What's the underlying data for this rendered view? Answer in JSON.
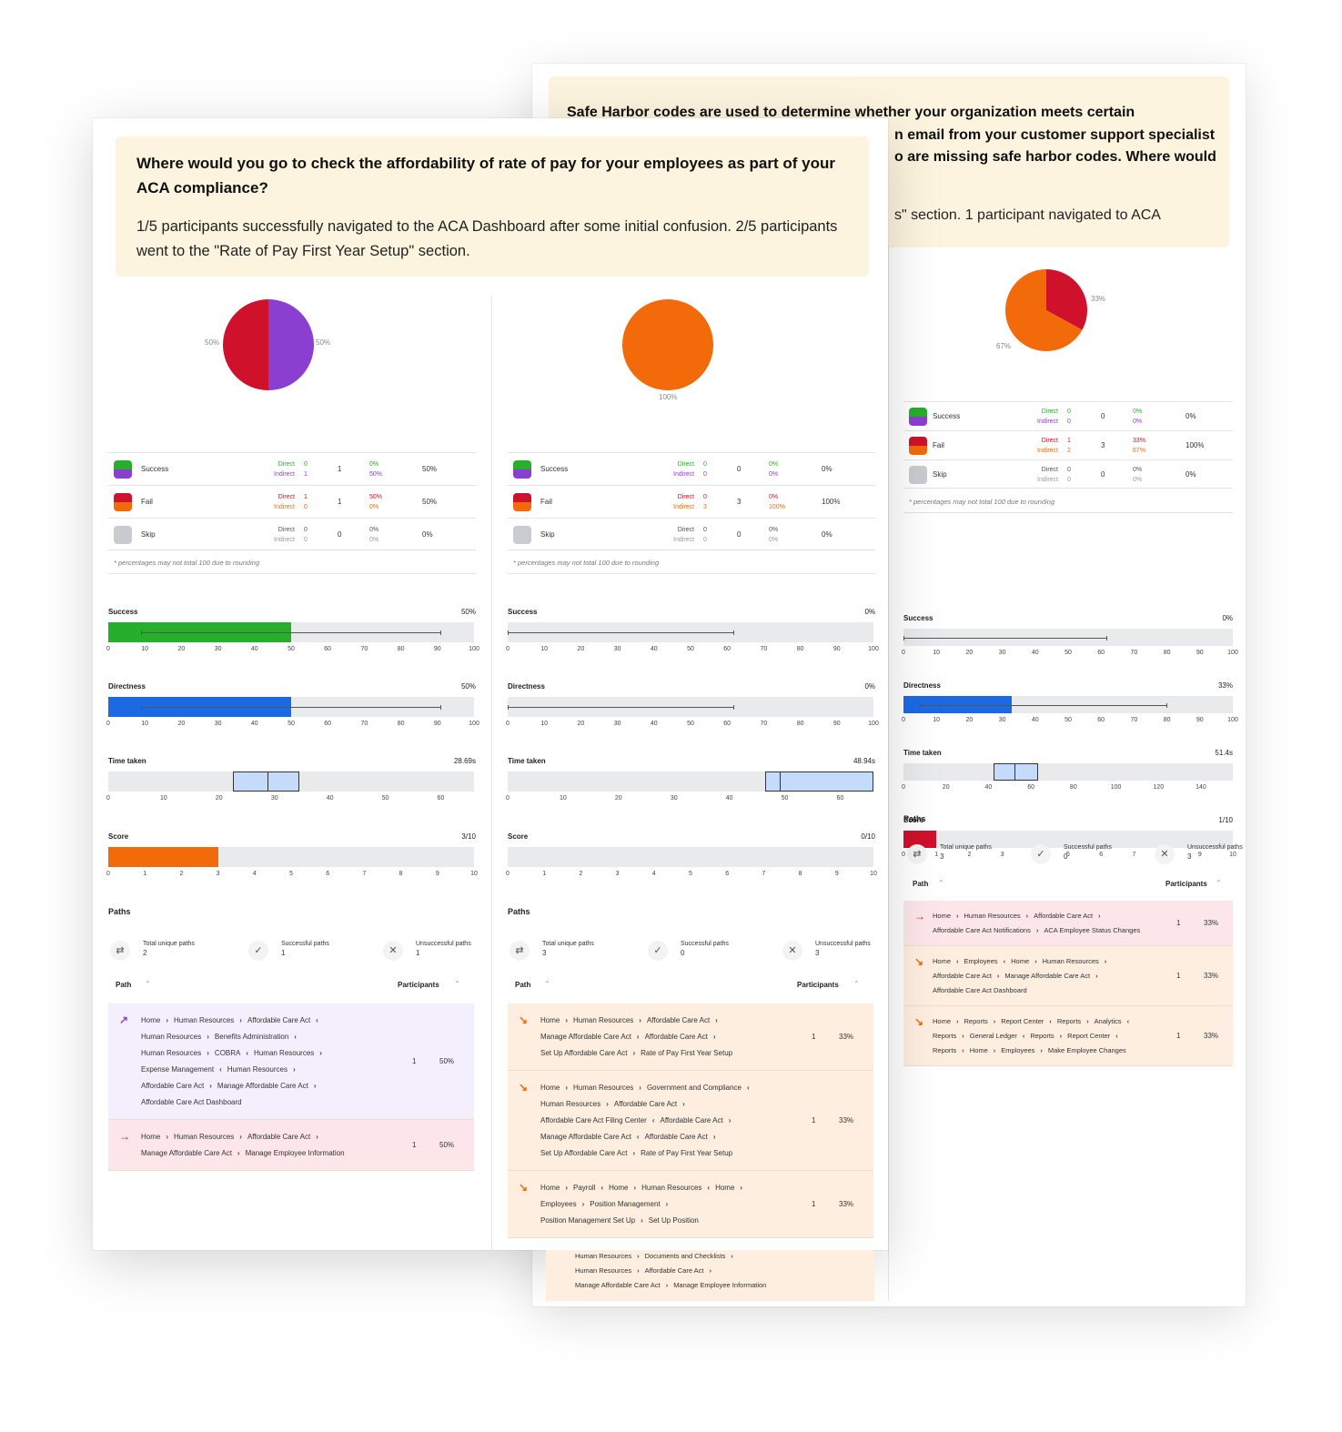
{
  "colors": {
    "success_direct": "#27ae2a",
    "success_indirect": "#8b3fd1",
    "fail_direct": "#d0112b",
    "fail_indirect": "#f26a0a",
    "skip": "#c8ccd1",
    "directness_blue": "#1c6ae3",
    "time_box": "#c4dcf9",
    "question_bg": "#fcf4de",
    "row_success": "#f3effd",
    "row_fail": "#fde6e9",
    "row_indirect_fail": "#fdeedf"
  },
  "legend_labels": {
    "success": "Success",
    "fail": "Fail",
    "skip": "Skip",
    "direct": "Direct",
    "indirect": "Indirect"
  },
  "rounding_note": "* percentages may not total 100 due to rounding",
  "metric_labels": {
    "success": "Success",
    "directness": "Directness",
    "time": "Time taken",
    "score": "Score",
    "paths": "Paths"
  },
  "paths_labels": {
    "total": "Total unique paths",
    "successful": "Successful paths",
    "unsuccessful": "Unsuccessful paths",
    "path": "Path",
    "participants": "Participants"
  },
  "tick_sets": {
    "pct": [
      "0",
      "10",
      "20",
      "30",
      "40",
      "50",
      "60",
      "70",
      "80",
      "90",
      "100"
    ],
    "score": [
      "0",
      "1",
      "2",
      "3",
      "4",
      "5",
      "6",
      "7",
      "8",
      "9",
      "10"
    ],
    "time_front1": [
      "0",
      "10",
      "20",
      "30",
      "40",
      "50",
      "60"
    ],
    "time_front2": [
      "0",
      "10",
      "20",
      "30",
      "40",
      "50",
      "60"
    ],
    "time_back": [
      "0",
      "20",
      "40",
      "60",
      "80",
      "100",
      "120",
      "140"
    ]
  },
  "back_question": {
    "title_lines": [
      "Safe Harbor codes are used to determine whether your organization meets certain",
      "n email from your customer support specialist",
      "o are missing safe harbor codes. Where would"
    ],
    "desc": "s\" section. 1 participant navigated to ACA"
  },
  "front_question": {
    "title": "Where would you go to check the affordability of rate of pay for your employees as part of your ACA compliance?",
    "desc": "1/5 participants successfully navigated to the ACA Dashboard after some initial confusion. 2/5 participants went to the \"Rate of Pay First Year Setup\" section."
  },
  "columns": [
    {
      "pie_labels": [
        "50%",
        "50%"
      ],
      "pie": [
        {
          "label": "Indirect success",
          "value": 50,
          "color": "#8b3fd1"
        },
        {
          "label": "Direct fail",
          "value": 50,
          "color": "#d0112b"
        }
      ],
      "legend": [
        {
          "dv": "0",
          "iv": "1",
          "dp": "0%",
          "ip": "50%",
          "tot": "1",
          "pct": "50%"
        },
        {
          "dv": "1",
          "iv": "0",
          "dp": "50%",
          "ip": "0%",
          "tot": "1",
          "pct": "50%"
        },
        {
          "dv": "0",
          "iv": "0",
          "dp": "0%",
          "ip": "0%",
          "tot": "0",
          "pct": "0%"
        }
      ],
      "success": {
        "value": "50%",
        "fill": 50,
        "whisker": [
          9,
          91
        ]
      },
      "directness": {
        "value": "50%",
        "fill": 50,
        "whisker": [
          9,
          91
        ]
      },
      "time": {
        "value": "28.69s",
        "box": [
          22.5,
          34.5
        ],
        "median": 28.7,
        "max": 66
      },
      "score": {
        "value": "3/10",
        "fill": 3
      },
      "paths": {
        "total": "2",
        "successful": "1",
        "unsuccessful": "1"
      },
      "rows": [
        {
          "crumbs": "Home › Human Resources › Affordable Care Act ‹ Human Resources › Benefits Administration ‹ Human Resources › COBRA ‹ Human Resources › Expense Management ‹ Human Resources › Affordable Care Act › Manage Affordable Care Act › Affordable Care Act Dashboard",
          "lines": [
            [
              "Home",
              "›",
              "Human Resources",
              "›",
              "Affordable Care Act",
              "‹"
            ],
            [
              "Human Resources",
              "›",
              "Benefits Administration",
              "‹"
            ],
            [
              "Human Resources",
              "›",
              "COBRA",
              "‹",
              "Human Resources",
              "›"
            ],
            [
              "Expense Management",
              "‹",
              "Human Resources",
              "›"
            ],
            [
              "Affordable Care Act",
              "›",
              "Manage Affordable Care Act",
              "›"
            ],
            [
              "Affordable Care Act Dashboard"
            ]
          ],
          "participants": "1",
          "pct": "50%",
          "kind": "success"
        },
        {
          "lines": [
            [
              "Home",
              "›",
              "Human Resources",
              "›",
              "Affordable Care Act",
              "›"
            ],
            [
              "Manage Affordable Care Act",
              "›",
              "Manage Employee Information"
            ]
          ],
          "participants": "1",
          "pct": "50%",
          "kind": "fail"
        }
      ]
    },
    {
      "pie_labels": [
        "100%"
      ],
      "pie": [
        {
          "label": "Indirect fail",
          "value": 100,
          "color": "#f26a0a"
        }
      ],
      "legend": [
        {
          "dv": "0",
          "iv": "0",
          "dp": "0%",
          "ip": "0%",
          "tot": "0",
          "pct": "0%"
        },
        {
          "dv": "0",
          "iv": "3",
          "dp": "0%",
          "ip": "100%",
          "tot": "3",
          "pct": "100%"
        },
        {
          "dv": "0",
          "iv": "0",
          "dp": "0%",
          "ip": "0%",
          "tot": "0",
          "pct": "0%"
        }
      ],
      "success": {
        "value": "0%",
        "fill": 0,
        "whisker": [
          0,
          62
        ]
      },
      "directness": {
        "value": "0%",
        "fill": 0,
        "whisker": [
          0,
          62
        ]
      },
      "time": {
        "value": "48.94s",
        "box": [
          46.5,
          66
        ],
        "median": 49,
        "max": 66
      },
      "score": {
        "value": "0/10",
        "fill": 0
      },
      "paths": {
        "total": "3",
        "successful": "0",
        "unsuccessful": "3"
      },
      "rows": [
        {
          "lines": [
            [
              "Home",
              "›",
              "Human Resources",
              "›",
              "Affordable Care Act",
              "›"
            ],
            [
              "Manage Affordable Care Act",
              "‹",
              "Affordable Care Act",
              "›"
            ],
            [
              "Set Up Affordable Care Act",
              "›",
              "Rate of Pay First Year Setup"
            ]
          ],
          "participants": "1",
          "pct": "33%",
          "kind": "indirect"
        },
        {
          "lines": [
            [
              "Home",
              "›",
              "Human Resources",
              "›",
              "Government and Compliance",
              "‹"
            ],
            [
              "Human Resources",
              "›",
              "Affordable Care Act",
              "›"
            ],
            [
              "Affordable Care Act Filing Center",
              "‹",
              "Affordable Care Act",
              "›"
            ],
            [
              "Manage Affordable Care Act",
              "‹",
              "Affordable Care Act",
              "›"
            ],
            [
              "Set Up Affordable Care Act",
              "›",
              "Rate of Pay First Year Setup"
            ]
          ],
          "participants": "1",
          "pct": "33%",
          "kind": "indirect"
        },
        {
          "lines": [
            [
              "Home",
              "›",
              "Payroll",
              "‹",
              "Home",
              "›",
              "Human Resources",
              "‹",
              "Home",
              "›"
            ],
            [
              "Employees",
              "›",
              "Position Management",
              "›"
            ],
            [
              "Position Management Set Up",
              "›",
              "Set Up Position"
            ]
          ],
          "participants": "1",
          "pct": "33%",
          "kind": "indirect"
        }
      ],
      "overflow_lines": [
        [
          "Human Resources",
          "›",
          "Documents and Checklists",
          "‹"
        ],
        [
          "Human Resources",
          "›",
          "Affordable Care Act",
          "›"
        ],
        [
          "Manage Affordable Care Act",
          "›",
          "Manage Employee Information"
        ]
      ]
    },
    {
      "pie_labels": [
        "33%",
        "67%"
      ],
      "pie": [
        {
          "label": "Direct fail",
          "value": 33,
          "color": "#d0112b"
        },
        {
          "label": "Indirect fail",
          "value": 67,
          "color": "#f26a0a"
        }
      ],
      "legend": [
        {
          "dv": "0",
          "iv": "0",
          "dp": "0%",
          "ip": "0%",
          "tot": "0",
          "pct": "0%"
        },
        {
          "dv": "1",
          "iv": "2",
          "dp": "33%",
          "ip": "67%",
          "tot": "3",
          "pct": "100%"
        },
        {
          "dv": "0",
          "iv": "0",
          "dp": "0%",
          "ip": "0%",
          "tot": "0",
          "pct": "0%"
        }
      ],
      "success": {
        "value": "0%",
        "fill": 0,
        "whisker": [
          0,
          62
        ]
      },
      "directness": {
        "value": "33%",
        "fill": 33,
        "whisker": [
          5,
          80
        ]
      },
      "time": {
        "value": "51.4s",
        "box": [
          42.5,
          63.5
        ],
        "median": 52,
        "max": 155
      },
      "score": {
        "value": "1/10",
        "fill": 1
      },
      "paths": {
        "total": "3",
        "successful": "0",
        "unsuccessful": "3"
      },
      "rows": [
        {
          "lines": [
            [
              "Home",
              "›",
              "Human Resources",
              "›",
              "Affordable Care Act",
              "›"
            ],
            [
              "Affordable Care Act Notifications",
              "›",
              "ACA Employee Status Changes"
            ]
          ],
          "participants": "1",
          "pct": "33%",
          "kind": "fail"
        },
        {
          "lines": [
            [
              "Home",
              "›",
              "Employees",
              "‹",
              "Home",
              "›",
              "Human Resources",
              "›"
            ],
            [
              "Affordable Care Act",
              "›",
              "Manage Affordable Care Act",
              "›"
            ],
            [
              "Affordable Care Act Dashboard"
            ]
          ],
          "participants": "1",
          "pct": "33%",
          "kind": "indirect"
        },
        {
          "lines": [
            [
              "Home",
              "›",
              "Reports",
              "›",
              "Report Center",
              "‹",
              "Reports",
              "›",
              "Analytics",
              "‹"
            ],
            [
              "Reports",
              "›",
              "General Ledger",
              "‹",
              "Reports",
              "›",
              "Report Center",
              "‹"
            ],
            [
              "Reports",
              "‹",
              "Home",
              "›",
              "Employees",
              "›",
              "Make Employee Changes"
            ]
          ],
          "participants": "1",
          "pct": "33%",
          "kind": "indirect"
        }
      ]
    }
  ]
}
